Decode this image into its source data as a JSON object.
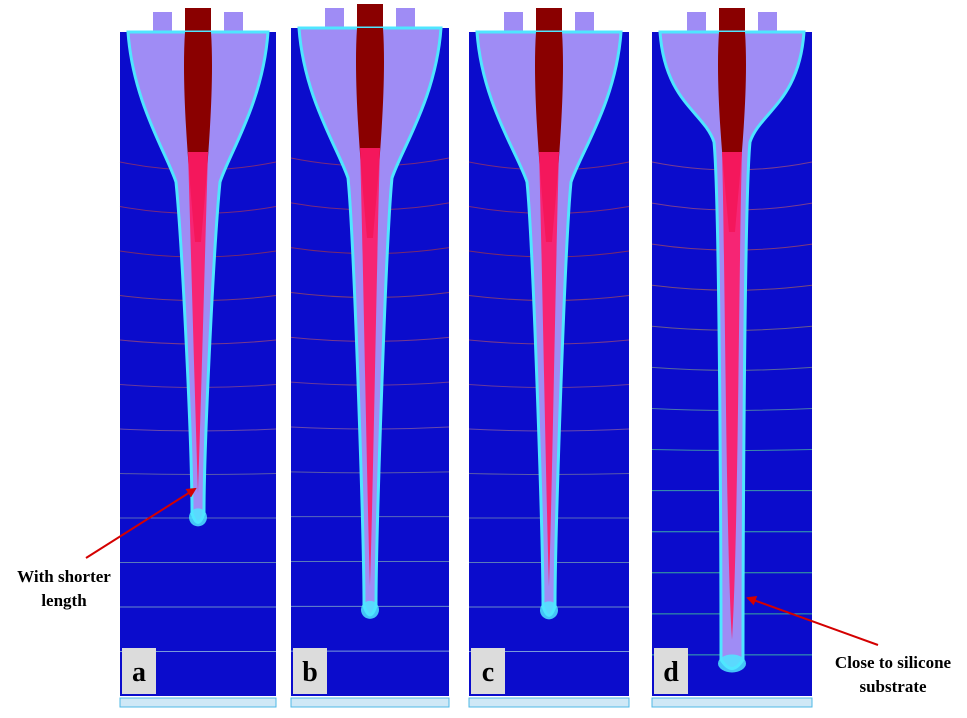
{
  "panels": [
    {
      "label": "a",
      "jet_end_fraction": 0.74,
      "taper": "short"
    },
    {
      "label": "b",
      "jet_end_fraction": 0.88,
      "taper": "long"
    },
    {
      "label": "c",
      "jet_end_fraction": 0.88,
      "taper": "long"
    },
    {
      "label": "d",
      "jet_end_fraction": 0.96,
      "taper": "straight"
    }
  ],
  "annotations": [
    {
      "panel": "a",
      "lines": [
        "With shorter",
        "length"
      ]
    },
    {
      "panel": "d",
      "lines": [
        "Close to silicone",
        "substrate"
      ]
    }
  ],
  "colors": {
    "background": "#0b0ccc",
    "cone": "#9f8cf5",
    "cone_edge": "#4fe6ff",
    "core": "#8a0000",
    "jet": "#ff1a66",
    "substrate": "#cfe8f6",
    "substrate_edge": "#4fb9e6",
    "arrow": "#d40000"
  }
}
